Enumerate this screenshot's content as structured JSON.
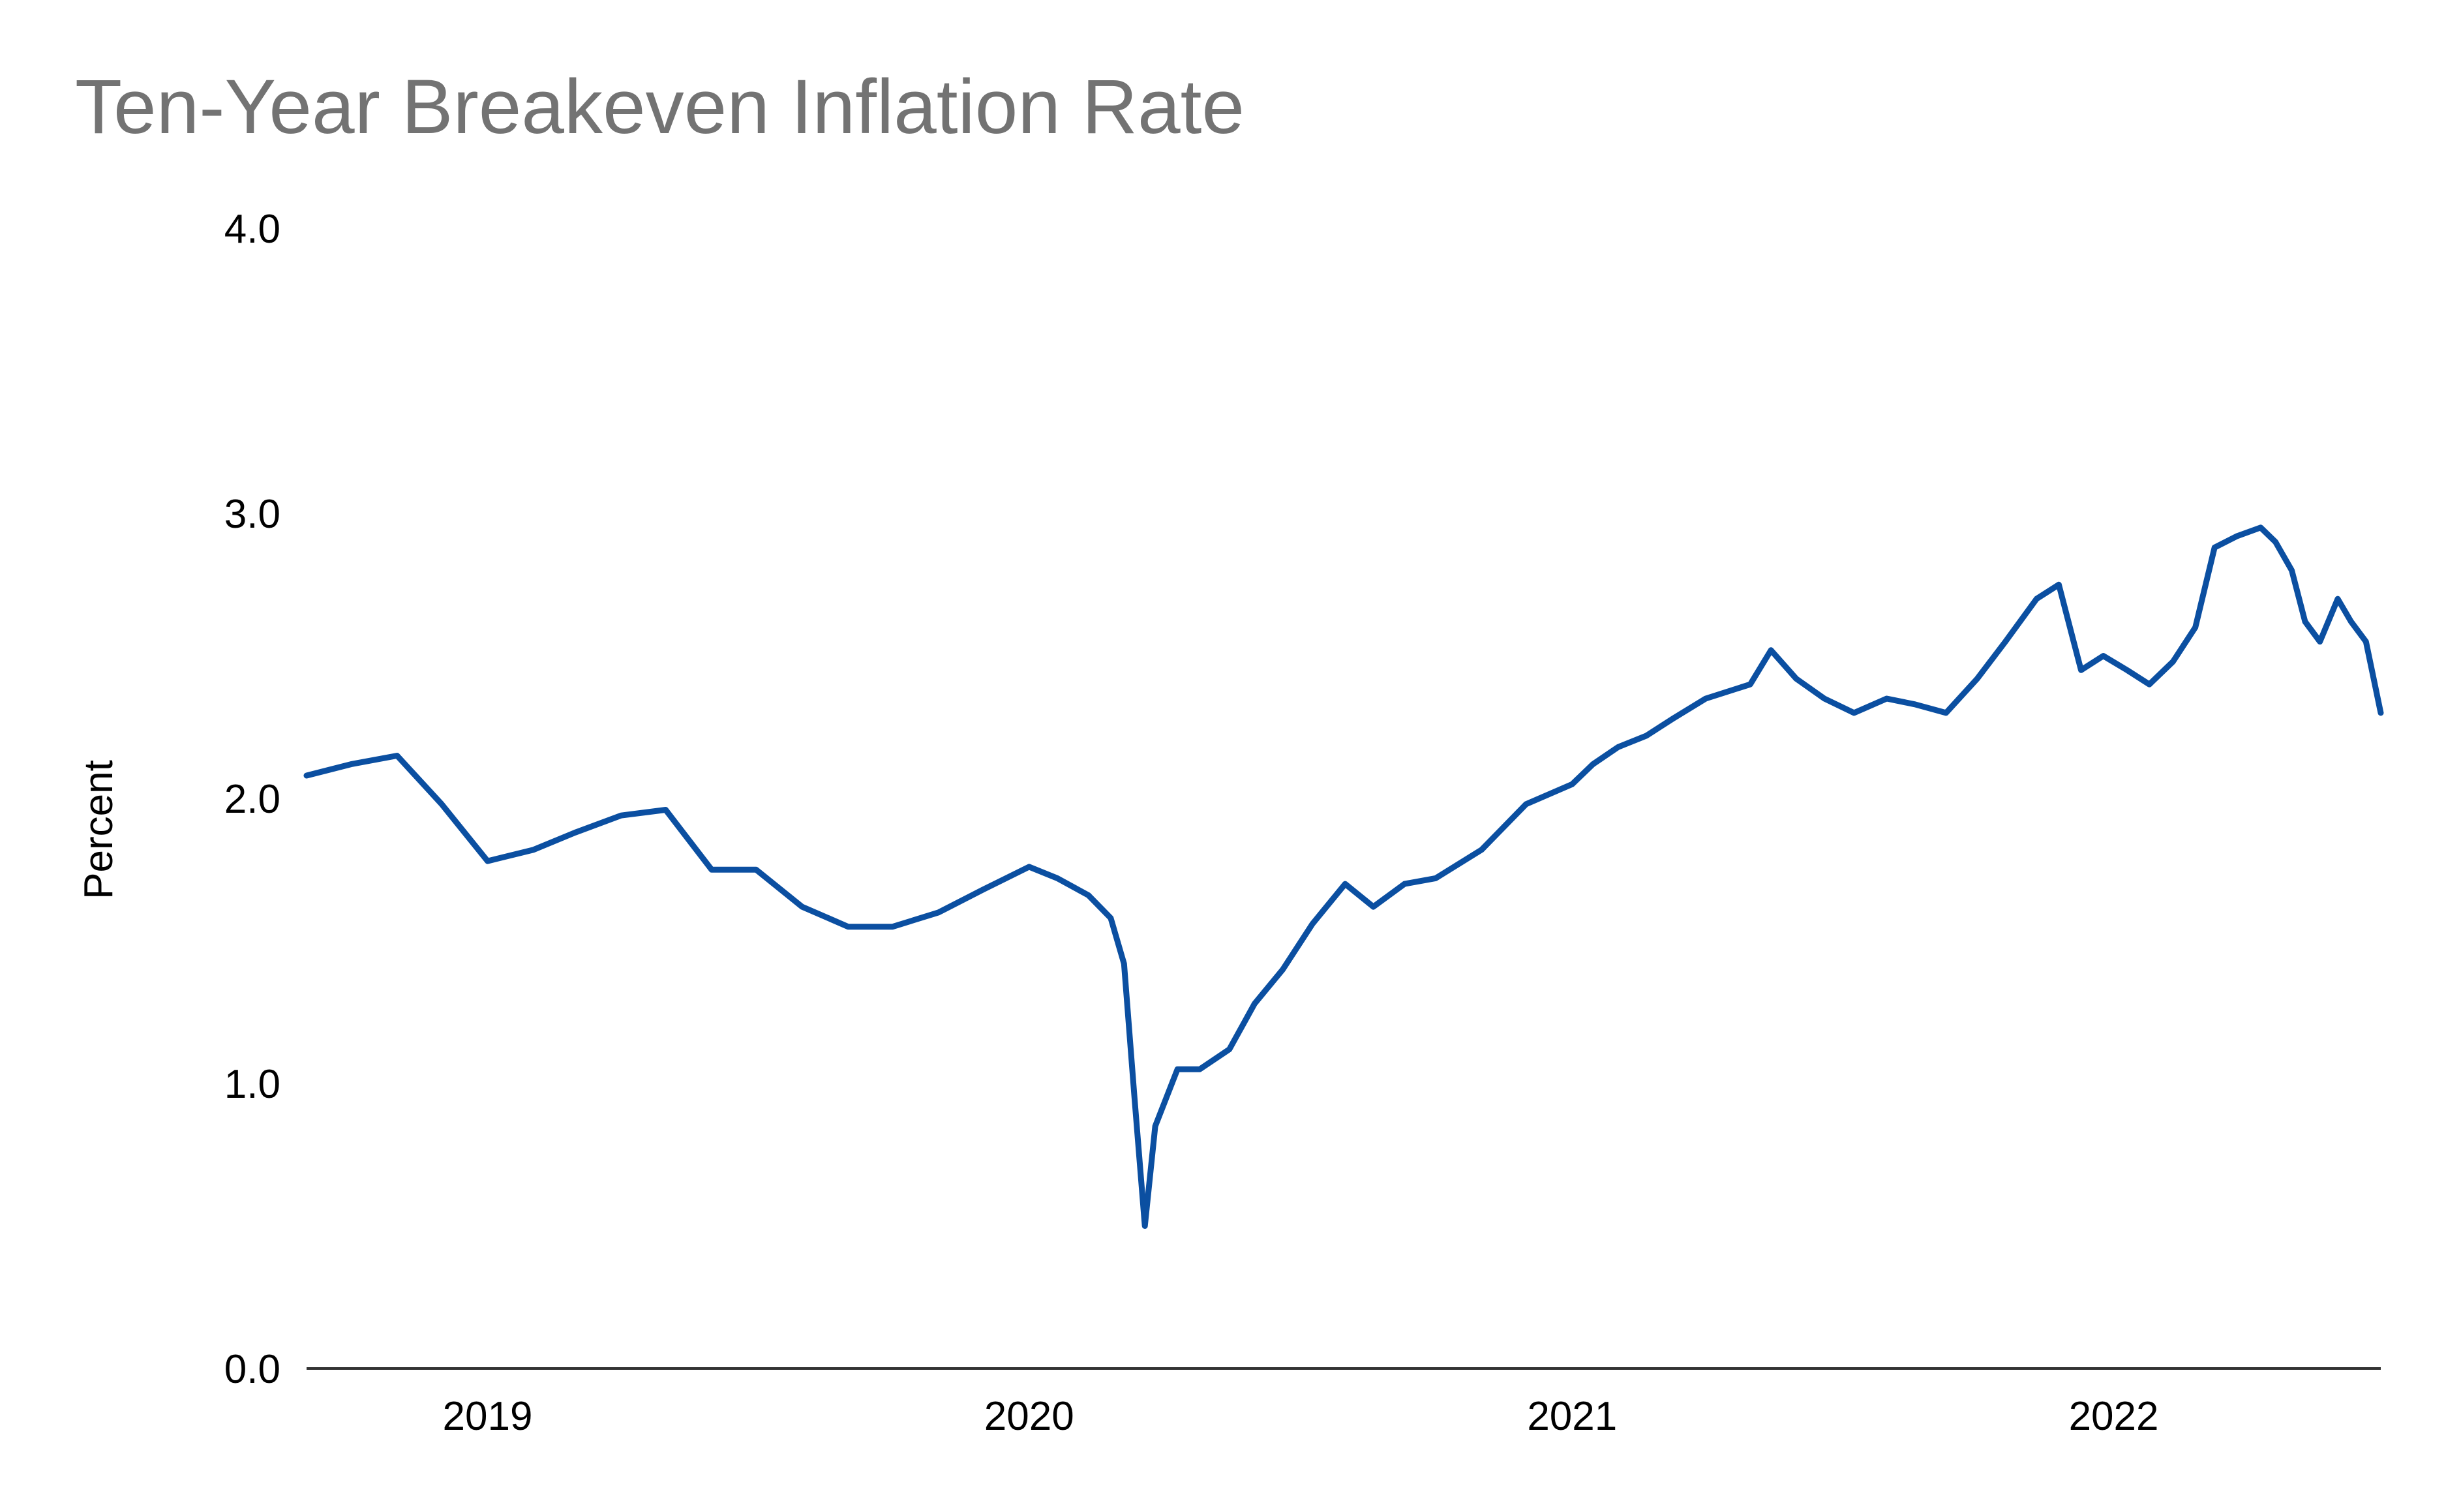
{
  "chart_data": {
    "type": "line",
    "title": "Ten-Year Breakeven Inflation Rate",
    "ylabel": "Percent",
    "xlabel": "",
    "ylim": [
      0,
      4
    ],
    "xlim": [
      "2018-09-01",
      "2022-06-30"
    ],
    "yticks": [
      "0.0",
      "1.0",
      "2.0",
      "3.0",
      "4.0"
    ],
    "xticks": [
      {
        "label": "2019",
        "date": "2019-01-01"
      },
      {
        "label": "2020",
        "date": "2020-01-01"
      },
      {
        "label": "2021",
        "date": "2021-01-01"
      },
      {
        "label": "2022",
        "date": "2022-01-01"
      }
    ],
    "grid": false,
    "legend": "none",
    "line_color": "#0b4fa1",
    "axis_color": "#333333",
    "title_color": "#737373",
    "series": [
      {
        "x": [
          "2018-09-01",
          "2018-10-01",
          "2018-11-01",
          "2018-12-01",
          "2019-01-01",
          "2019-02-01",
          "2019-03-01",
          "2019-04-01",
          "2019-05-01",
          "2019-06-01",
          "2019-07-01",
          "2019-08-01",
          "2019-09-01",
          "2019-10-01",
          "2019-11-01",
          "2019-12-01",
          "2020-01-01",
          "2020-01-20",
          "2020-02-10",
          "2020-02-25",
          "2020-03-05",
          "2020-03-12",
          "2020-03-19",
          "2020-03-26",
          "2020-04-10",
          "2020-04-25",
          "2020-05-15",
          "2020-06-01",
          "2020-06-20",
          "2020-07-10",
          "2020-08-01",
          "2020-08-20",
          "2020-09-10",
          "2020-10-01",
          "2020-11-01",
          "2020-12-01",
          "2021-01-01",
          "2021-01-15",
          "2021-02-01",
          "2021-02-20",
          "2021-03-10",
          "2021-04-01",
          "2021-05-01",
          "2021-05-15",
          "2021-06-01",
          "2021-06-20",
          "2021-07-10",
          "2021-08-01",
          "2021-08-20",
          "2021-09-10",
          "2021-10-01",
          "2021-10-20",
          "2021-11-10",
          "2021-11-25",
          "2021-12-10",
          "2021-12-25",
          "2022-01-10",
          "2022-01-25",
          "2022-02-10",
          "2022-02-25",
          "2022-03-10",
          "2022-03-25",
          "2022-04-10",
          "2022-04-20",
          "2022-05-01",
          "2022-05-10",
          "2022-05-20",
          "2022-06-01",
          "2022-06-10",
          "2022-06-20",
          "2022-06-30"
        ],
        "values": [
          2.08,
          2.12,
          2.15,
          1.98,
          1.78,
          1.82,
          1.88,
          1.94,
          1.96,
          1.75,
          1.75,
          1.62,
          1.55,
          1.55,
          1.6,
          1.68,
          1.76,
          1.72,
          1.66,
          1.58,
          1.42,
          0.95,
          0.5,
          0.85,
          1.05,
          1.05,
          1.12,
          1.28,
          1.4,
          1.56,
          1.7,
          1.62,
          1.7,
          1.72,
          1.82,
          1.98,
          2.05,
          2.12,
          2.18,
          2.22,
          2.28,
          2.35,
          2.4,
          2.52,
          2.42,
          2.35,
          2.3,
          2.35,
          2.33,
          2.3,
          2.42,
          2.55,
          2.7,
          2.75,
          2.45,
          2.5,
          2.45,
          2.4,
          2.48,
          2.6,
          2.88,
          2.92,
          2.95,
          2.9,
          2.8,
          2.62,
          2.55,
          2.7,
          2.62,
          2.55,
          2.3
        ]
      }
    ]
  }
}
